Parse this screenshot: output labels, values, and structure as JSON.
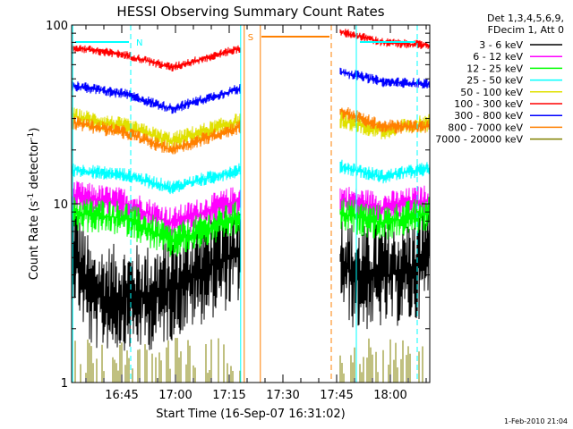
{
  "chart_data": {
    "type": "line",
    "title": "HESSI Observing Summary Count Rates",
    "xlabel": "Start Time (16-Sep-07 16:31:02)",
    "ylabel": "Count Rate (s",
    "ylabel_sup": "-1",
    "ylabel_tail": " detector",
    "ylabel_sup2": "-1",
    "ylabel_close": ")",
    "yscale": "log",
    "ylim": [
      1,
      100
    ],
    "xlim_minutes": [
      0,
      100
    ],
    "y_tick_labels": [
      "1",
      "10",
      "100"
    ],
    "x_ticks": [
      {
        "label": "16:45",
        "min": 14
      },
      {
        "label": "17:00",
        "min": 29
      },
      {
        "label": "17:15",
        "min": 44
      },
      {
        "label": "17:30",
        "min": 59
      },
      {
        "label": "17:45",
        "min": 74
      },
      {
        "label": "18:00",
        "min": 89
      }
    ],
    "legend": {
      "placement": "top-right",
      "header": [
        "Det 1,3,4,5,6,9,",
        "FDecim 1, Att 0"
      ]
    },
    "series": [
      {
        "name": "3 - 6 keV",
        "color": "#000000",
        "segments": [
          [
            0,
            6,
            5.5,
            3,
            23,
            3,
            47,
            5.5
          ],
          [
            75,
            5.2,
            79,
            3.8,
            96,
            4.2,
            100,
            5.6
          ]
        ],
        "noise": 0.3
      },
      {
        "name": "6 - 12 keV",
        "color": "#ff00ff",
        "segments": [
          [
            0,
            11,
            15,
            10,
            28,
            7.8,
            47,
            10.5
          ],
          [
            75,
            10.5,
            87,
            9.5,
            100,
            10.5
          ]
        ],
        "noise": 0.09
      },
      {
        "name": "12 - 25 keV",
        "color": "#00ff00",
        "segments": [
          [
            0,
            8.8,
            15,
            8.3,
            28,
            6.1,
            47,
            8.4
          ],
          [
            75,
            8.8,
            87,
            7.8,
            100,
            8.8
          ]
        ],
        "noise": 0.1
      },
      {
        "name": "25 - 50 keV",
        "color": "#00ffff",
        "segments": [
          [
            0,
            15.5,
            15,
            14.5,
            28,
            12.3,
            47,
            15.5
          ],
          [
            75,
            16.2,
            87,
            14.2,
            100,
            15.8
          ]
        ],
        "noise": 0.04
      },
      {
        "name": "50 - 100 keV",
        "color": "#e0e000",
        "segments": [
          [
            0,
            31,
            15,
            27,
            28,
            22.5,
            47,
            29
          ],
          [
            75,
            29.5,
            87,
            25.5,
            100,
            28.5
          ]
        ],
        "noise": 0.05
      },
      {
        "name": "100 - 300 keV",
        "color": "#ff0000",
        "segments": [
          [
            0,
            75,
            15,
            68,
            28,
            58,
            47,
            74
          ],
          [
            75,
            92,
            87,
            80,
            100,
            77
          ]
        ],
        "noise": 0.025
      },
      {
        "name": "300 - 800 keV",
        "color": "#0000ff",
        "segments": [
          [
            0,
            46,
            15,
            41,
            28,
            34,
            47,
            44
          ],
          [
            75,
            55,
            87,
            48,
            100,
            47
          ]
        ],
        "noise": 0.03
      },
      {
        "name": "800 - 7000 keV",
        "color": "#ff8000",
        "segments": [
          [
            0,
            28.5,
            15,
            25,
            28,
            20,
            47,
            27
          ],
          [
            75,
            33,
            87,
            27,
            100,
            27
          ]
        ],
        "noise": 0.04
      },
      {
        "name": "7000 - 20000 keV",
        "color": "#808000",
        "segments": [
          [
            0,
            1.7,
            30,
            1.7
          ],
          [
            30,
            1.7,
            47,
            1.7
          ],
          [
            75,
            1.7,
            100,
            1.7
          ]
        ],
        "noise": 0
      }
    ],
    "annotations": {
      "flags": [
        {
          "label": "N",
          "color": "#00ffff"
        },
        {
          "label": "S",
          "color": "#ff8000"
        }
      ]
    }
  },
  "timestamp": "1-Feb-2010 21:04"
}
